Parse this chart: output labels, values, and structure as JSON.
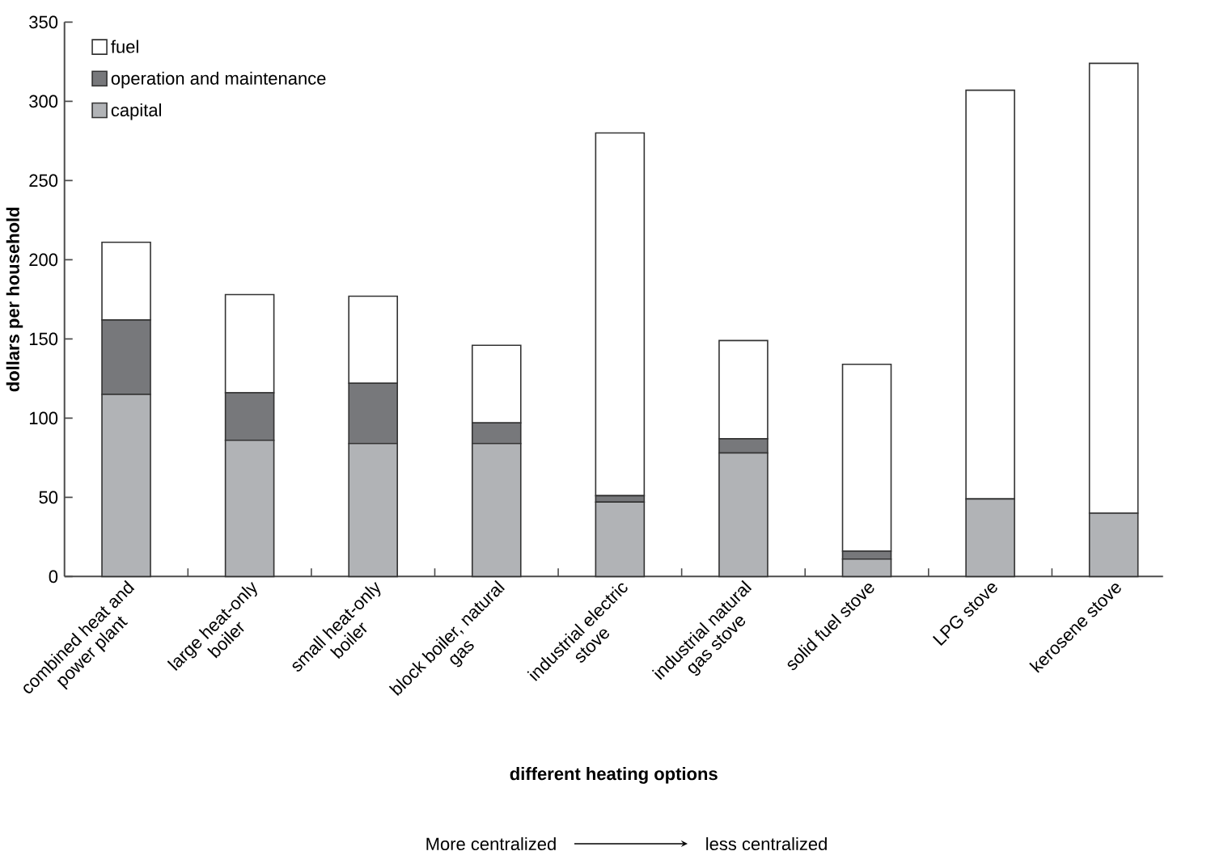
{
  "chart_data": {
    "type": "bar",
    "stacked": true,
    "xlabel": "different heating options",
    "ylabel": "dollars per household",
    "annotations": [
      "More centralized",
      "less centralized"
    ],
    "categories": [
      "combined heat and power plant",
      "large heat-only boiler",
      "small heat-only boiler",
      "block boiler, natural gas",
      "industrial electric stove",
      "industrial natural gas stove",
      "solid fuel stove",
      "LPG stove",
      "kerosene stove"
    ],
    "series": [
      {
        "name": "capital",
        "color": "#b1b3b6",
        "values": [
          115,
          86,
          84,
          84,
          47,
          78,
          11,
          49,
          40
        ]
      },
      {
        "name": "operation and maintenance",
        "color": "#77787b",
        "values": [
          47,
          30,
          38,
          13,
          4,
          9,
          5,
          0,
          0
        ]
      },
      {
        "name": "fuel",
        "color": "#ffffff",
        "values": [
          49,
          62,
          55,
          49,
          229,
          62,
          118,
          258,
          284
        ]
      }
    ],
    "ylim": [
      0,
      350
    ],
    "yticks": [
      0,
      50,
      100,
      150,
      200,
      250,
      300,
      350
    ],
    "legend": "top left"
  }
}
